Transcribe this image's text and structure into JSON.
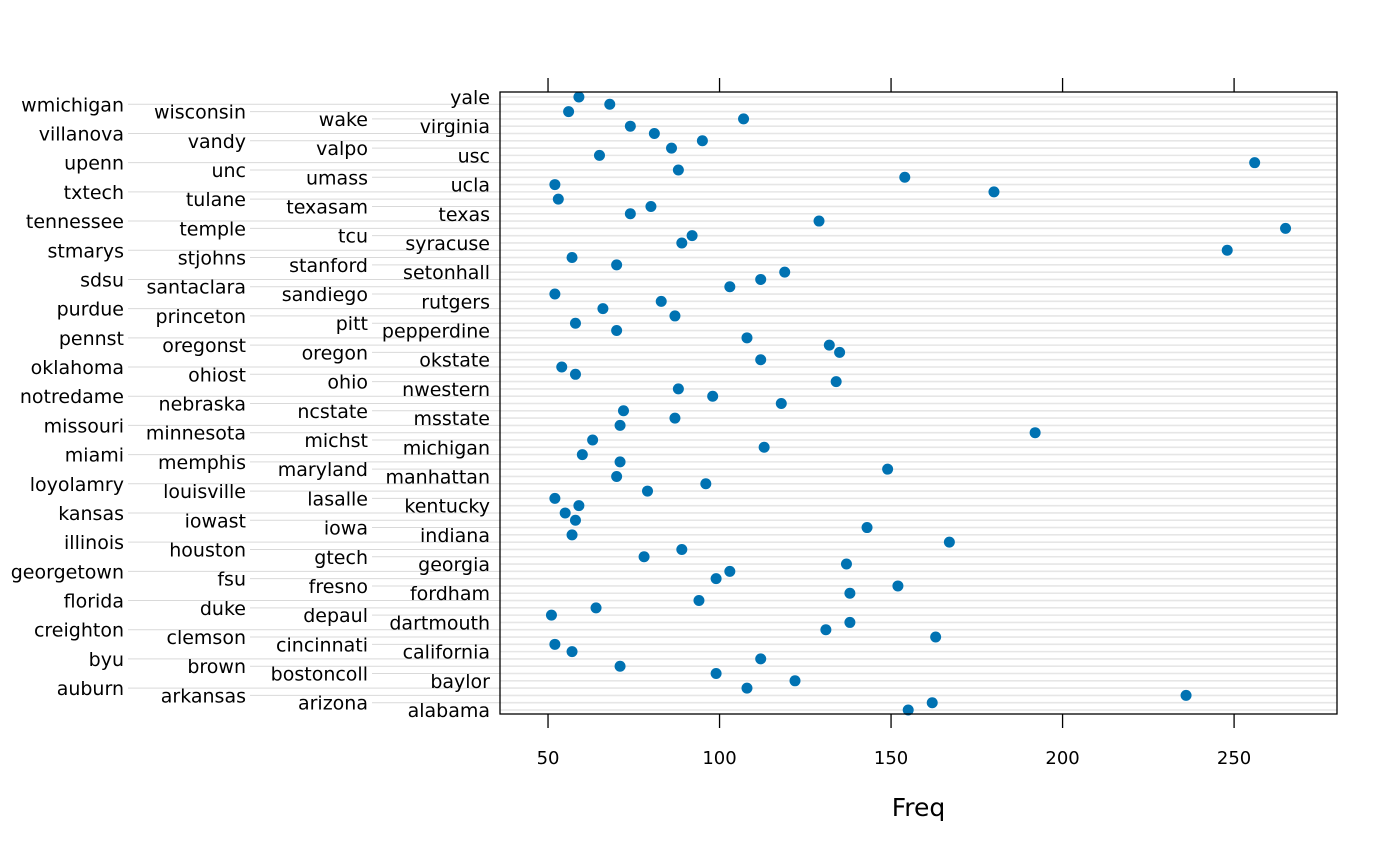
{
  "chart_data": {
    "type": "dotplot",
    "xlabel": "Freq",
    "ylabel": "",
    "title": "",
    "xlim": [
      36,
      280
    ],
    "xticks": [
      50,
      100,
      150,
      200,
      250
    ],
    "grid": "horizontal lines per category",
    "point_color": "#0072B2",
    "categories": [
      "alabama",
      "arizona",
      "arkansas",
      "auburn",
      "baylor",
      "bostoncoll",
      "brown",
      "byu",
      "california",
      "cincinnati",
      "clemson",
      "creighton",
      "dartmouth",
      "depaul",
      "duke",
      "florida",
      "fordham",
      "fresno",
      "fsu",
      "georgetown",
      "georgia",
      "gtech",
      "houston",
      "illinois",
      "indiana",
      "iowa",
      "iowast",
      "kansas",
      "kentucky",
      "lasalle",
      "louisville",
      "loyolamry",
      "manhattan",
      "maryland",
      "memphis",
      "miami",
      "michigan",
      "michst",
      "minnesota",
      "missouri",
      "msstate",
      "ncstate",
      "nebraska",
      "notredame",
      "nwestern",
      "ohio",
      "ohiost",
      "oklahoma",
      "okstate",
      "oregon",
      "oregonst",
      "pennst",
      "pepperdine",
      "pitt",
      "princeton",
      "purdue",
      "rutgers",
      "sandiego",
      "santaclara",
      "sdsu",
      "setonhall",
      "stanford",
      "stjohns",
      "stmarys",
      "syracuse",
      "tcu",
      "temple",
      "tennessee",
      "texas",
      "texasam",
      "tulane",
      "txtech",
      "ucla",
      "umass",
      "unc",
      "upenn",
      "usc",
      "valpo",
      "vandy",
      "villanova",
      "virginia",
      "wake",
      "wisconsin",
      "wmichigan",
      "yale"
    ],
    "values": [
      155,
      162,
      236,
      108,
      122,
      99,
      71,
      112,
      57,
      52,
      163,
      131,
      138,
      51,
      64,
      94,
      138,
      152,
      99,
      103,
      137,
      78,
      89,
      167,
      57,
      143,
      58,
      55,
      59,
      52,
      79,
      96,
      70,
      149,
      71,
      60,
      113,
      63,
      192,
      71,
      87,
      72,
      118,
      98,
      88,
      134,
      58,
      54,
      112,
      135,
      132,
      108,
      70,
      58,
      87,
      66,
      83,
      52,
      103,
      112,
      119,
      70,
      57,
      248,
      89,
      92,
      265,
      129,
      74,
      80,
      53,
      180,
      52,
      154,
      88,
      256,
      65,
      86,
      95,
      81,
      74,
      107,
      56,
      68,
      59
    ]
  }
}
